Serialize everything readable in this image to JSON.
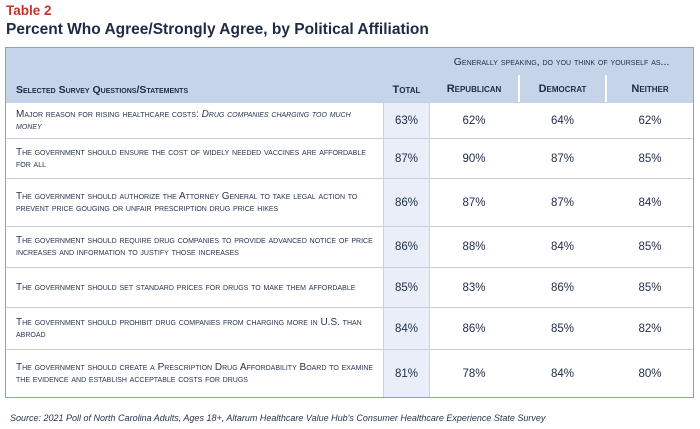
{
  "table_label": "Table 2",
  "title": "Percent Who Agree/Strongly Agree, by Political Affiliation",
  "header": {
    "question_col": "Selected Survey Questions/Statements",
    "total_col": "Total",
    "group_span": "Generally speaking, do you think of yourself as...",
    "groups": [
      "Republican",
      "Democrat",
      "Neither"
    ]
  },
  "rows": [
    {
      "prefix": "Major reason for rising healthcare costs: ",
      "emph": "Drug companies charging too much money",
      "text": "",
      "total": "63%",
      "republican": "62%",
      "democrat": "64%",
      "neither": "62%"
    },
    {
      "prefix": "",
      "emph": "",
      "text": "The government should ensure the cost of widely needed vaccines are affordable for all",
      "total": "87%",
      "republican": "90%",
      "democrat": "87%",
      "neither": "85%"
    },
    {
      "prefix": "",
      "emph": "",
      "text": "The government should authorize the Attorney General to take legal action to prevent price gouging or unfair prescription drug price hikes",
      "total": "86%",
      "republican": "87%",
      "democrat": "87%",
      "neither": "84%"
    },
    {
      "prefix": "",
      "emph": "",
      "text": "The government should require drug companies to provide advanced notice of price increases and information to justify those increases",
      "total": "86%",
      "republican": "88%",
      "democrat": "84%",
      "neither": "85%"
    },
    {
      "prefix": "",
      "emph": "",
      "text": "The government should set standard prices for drugs to make them affordable",
      "total": "85%",
      "republican": "83%",
      "democrat": "86%",
      "neither": "85%"
    },
    {
      "prefix": "",
      "emph": "",
      "text": "The government should prohibit drug companies from charging more in U.S. than abroad",
      "total": "84%",
      "republican": "86%",
      "democrat": "85%",
      "neither": "82%"
    },
    {
      "prefix": "",
      "emph": "",
      "text": "The government should create a Prescription Drug Affordability Board to examine the evidence and establish acceptable costs for drugs",
      "total": "81%",
      "republican": "78%",
      "democrat": "84%",
      "neither": "80%"
    }
  ],
  "source": "Source: 2021 Poll of North Carolina Adults, Ages 18+, Altarum Healthcare Value Hub's Consumer Healthcare Experience State Survey"
}
